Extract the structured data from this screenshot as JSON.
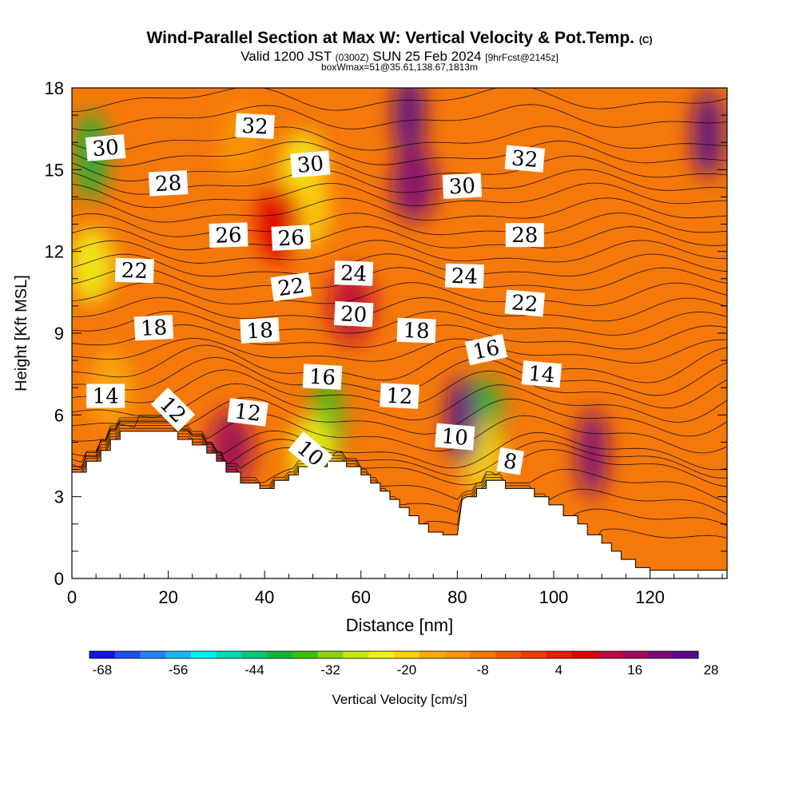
{
  "header": {
    "title": "Wind-Parallel Section at Max W: Vertical Velocity & Pot.Temp.",
    "copyright": "(C)",
    "valid_prefix": "Valid 1200 JST",
    "valid_utc": "(0300Z)",
    "valid_date": "SUN 25 Feb 2024",
    "forecast": "[9hrFcst@2145z]",
    "boxinfo": "boxWmax=51@35.61,138.67,1813m"
  },
  "chart_data": {
    "type": "heatmap",
    "xlabel": "Distance [nm]",
    "ylabel": "Height [Kft MSL]",
    "xlim": [
      0,
      136
    ],
    "ylim": [
      0,
      18
    ],
    "xticks": [
      0,
      20,
      40,
      60,
      80,
      100,
      120
    ],
    "yticks": [
      0,
      3,
      6,
      9,
      12,
      15,
      18
    ],
    "colorbar": {
      "label": "Vertical Velocity [cm/s]",
      "tick_labels": [
        -68,
        -56,
        -44,
        -32,
        -20,
        -8,
        4,
        16,
        28
      ],
      "colors": [
        "#1414e6",
        "#1e50f0",
        "#2882f5",
        "#1eb4f0",
        "#00f0f0",
        "#00d7b4",
        "#00c878",
        "#14b43c",
        "#3cbe14",
        "#8cd214",
        "#c8e614",
        "#f0f014",
        "#fad20a",
        "#faaa0a",
        "#fa9600",
        "#f57800",
        "#f05a00",
        "#eb3c00",
        "#e61e00",
        "#dc0000",
        "#be0a3c",
        "#a00a5a",
        "#7d0a78",
        "#5a0a8c"
      ]
    },
    "terrain": [
      [
        0,
        3.9
      ],
      [
        1,
        3.9
      ],
      [
        3,
        3.9
      ],
      [
        3,
        4.3
      ],
      [
        6,
        4.3
      ],
      [
        6,
        4.7
      ],
      [
        8,
        4.7
      ],
      [
        8,
        5.1
      ],
      [
        10,
        5.1
      ],
      [
        10,
        5.4
      ],
      [
        22,
        5.4
      ],
      [
        22,
        5.1
      ],
      [
        25,
        5.1
      ],
      [
        25,
        4.9
      ],
      [
        28,
        4.9
      ],
      [
        28,
        4.6
      ],
      [
        30,
        4.6
      ],
      [
        30,
        4.3
      ],
      [
        32,
        4.3
      ],
      [
        32,
        3.9
      ],
      [
        35,
        3.9
      ],
      [
        35,
        3.5
      ],
      [
        39,
        3.5
      ],
      [
        39,
        3.3
      ],
      [
        42,
        3.3
      ],
      [
        42,
        3.6
      ],
      [
        45,
        3.6
      ],
      [
        45,
        3.8
      ],
      [
        47,
        3.8
      ],
      [
        47,
        4.1
      ],
      [
        53,
        4.1
      ],
      [
        53,
        4.3
      ],
      [
        57,
        4.3
      ],
      [
        57,
        4.1
      ],
      [
        60,
        4.1
      ],
      [
        60,
        3.8
      ],
      [
        62,
        3.8
      ],
      [
        62,
        3.5
      ],
      [
        64,
        3.5
      ],
      [
        64,
        3.2
      ],
      [
        66,
        3.2
      ],
      [
        66,
        2.9
      ],
      [
        68,
        2.9
      ],
      [
        68,
        2.6
      ],
      [
        70,
        2.6
      ],
      [
        70,
        2.3
      ],
      [
        72,
        2.3
      ],
      [
        72,
        2.0
      ],
      [
        74,
        2.0
      ],
      [
        74,
        1.7
      ],
      [
        77,
        1.7
      ],
      [
        77,
        1.6
      ],
      [
        80,
        1.6
      ],
      [
        81,
        2.9
      ],
      [
        82,
        3.0
      ],
      [
        84,
        3.0
      ],
      [
        84,
        3.3
      ],
      [
        86,
        3.3
      ],
      [
        86,
        3.6
      ],
      [
        90,
        3.6
      ],
      [
        90,
        3.3
      ],
      [
        96,
        3.3
      ],
      [
        96,
        3.0
      ],
      [
        99,
        3.0
      ],
      [
        99,
        2.7
      ],
      [
        102,
        2.7
      ],
      [
        102,
        2.3
      ],
      [
        105,
        2.3
      ],
      [
        105,
        2.0
      ],
      [
        107,
        2.0
      ],
      [
        107,
        1.6
      ],
      [
        110,
        1.6
      ],
      [
        110,
        1.3
      ],
      [
        112,
        1.3
      ],
      [
        112,
        1.0
      ],
      [
        114,
        1.0
      ],
      [
        114,
        0.7
      ],
      [
        117,
        0.7
      ],
      [
        117,
        0.4
      ],
      [
        120,
        0.4
      ],
      [
        120,
        0.3
      ],
      [
        136,
        0.3
      ]
    ],
    "w_cells": [
      {
        "x": 4,
        "y": 15.5,
        "w": -38
      },
      {
        "x": 4,
        "y": 11.5,
        "w": -22
      },
      {
        "x": 8,
        "y": 7,
        "w": -12
      },
      {
        "x": 35,
        "y": 16,
        "w": -10
      },
      {
        "x": 48,
        "y": 15,
        "w": -22
      },
      {
        "x": 49,
        "y": 13.5,
        "w": -16
      },
      {
        "x": 53,
        "y": 5.8,
        "w": -36
      },
      {
        "x": 50,
        "y": 4.6,
        "w": -22
      },
      {
        "x": 86,
        "y": 5.8,
        "w": -38
      },
      {
        "x": 85,
        "y": 4.5,
        "w": -16
      },
      {
        "x": 70,
        "y": 17,
        "w": 30
      },
      {
        "x": 71,
        "y": 14.5,
        "w": 24
      },
      {
        "x": 81,
        "y": 5.8,
        "w": 30
      },
      {
        "x": 108,
        "y": 4.6,
        "w": 26
      },
      {
        "x": 132,
        "y": 16.3,
        "w": 28
      },
      {
        "x": 33,
        "y": 4.8,
        "w": 22
      },
      {
        "x": 43,
        "y": 13,
        "w": 14
      },
      {
        "x": 58,
        "y": 10,
        "w": 16
      }
    ],
    "isentropes": [
      {
        "theta": 8,
        "h": 4.1
      },
      {
        "theta": 10,
        "h": 4.7
      },
      {
        "theta": 12,
        "h": 5.9
      },
      {
        "theta": 14,
        "h": 6.9
      },
      {
        "theta": 16,
        "h": 7.8
      },
      {
        "theta": 18,
        "h": 8.8
      },
      {
        "theta": 20,
        "h": 9.8
      },
      {
        "theta": 22,
        "h": 10.9
      },
      {
        "theta": 24,
        "h": 11.9
      },
      {
        "theta": 26,
        "h": 12.9
      },
      {
        "theta": 28,
        "h": 14.0
      },
      {
        "theta": 30,
        "h": 15.0
      },
      {
        "theta": 32,
        "h": 16.1
      }
    ],
    "contour_labels": [
      {
        "text": "30",
        "x": 7,
        "y": 15.8,
        "rot": 5
      },
      {
        "text": "32",
        "x": 38,
        "y": 16.6,
        "rot": -3
      },
      {
        "text": "28",
        "x": 20,
        "y": 14.5,
        "rot": 3
      },
      {
        "text": "30",
        "x": 49.5,
        "y": 15.2,
        "rot": 5
      },
      {
        "text": "30",
        "x": 81,
        "y": 14.4,
        "rot": 3
      },
      {
        "text": "32",
        "x": 94,
        "y": 15.4,
        "rot": -5
      },
      {
        "text": "26",
        "x": 32.5,
        "y": 12.6,
        "rot": 2
      },
      {
        "text": "26",
        "x": 45.5,
        "y": 12.5,
        "rot": 3
      },
      {
        "text": "28",
        "x": 94,
        "y": 12.6,
        "rot": 0
      },
      {
        "text": "22",
        "x": 13,
        "y": 11.3,
        "rot": -2
      },
      {
        "text": "22",
        "x": 45.5,
        "y": 10.7,
        "rot": 8
      },
      {
        "text": "24",
        "x": 58.5,
        "y": 11.2,
        "rot": -2
      },
      {
        "text": "24",
        "x": 81.5,
        "y": 11.1,
        "rot": -2
      },
      {
        "text": "22",
        "x": 94,
        "y": 10.1,
        "rot": -5
      },
      {
        "text": "18",
        "x": 17,
        "y": 9.2,
        "rot": 3
      },
      {
        "text": "18",
        "x": 39,
        "y": 9.1,
        "rot": 3
      },
      {
        "text": "20",
        "x": 58.5,
        "y": 9.7,
        "rot": -3
      },
      {
        "text": "18",
        "x": 71.5,
        "y": 9.1,
        "rot": -2
      },
      {
        "text": "16",
        "x": 86,
        "y": 8.4,
        "rot": 12
      },
      {
        "text": "14",
        "x": 7,
        "y": 6.7,
        "rot": 0
      },
      {
        "text": "16",
        "x": 52,
        "y": 7.4,
        "rot": -3
      },
      {
        "text": "14",
        "x": 97.5,
        "y": 7.5,
        "rot": -5
      },
      {
        "text": "12",
        "x": 21,
        "y": 6.2,
        "rot": -45
      },
      {
        "text": "12",
        "x": 36.5,
        "y": 6.1,
        "rot": -7
      },
      {
        "text": "12",
        "x": 68,
        "y": 6.7,
        "rot": -3
      },
      {
        "text": "10",
        "x": 49.5,
        "y": 4.6,
        "rot": -40
      },
      {
        "text": "10",
        "x": 79.5,
        "y": 5.2,
        "rot": -5
      },
      {
        "text": "8",
        "x": 91,
        "y": 4.3,
        "rot": -10
      }
    ]
  }
}
